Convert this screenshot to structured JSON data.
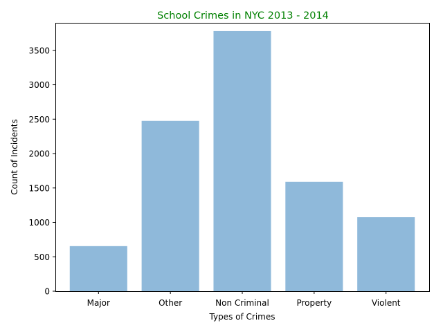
{
  "chart_data": {
    "type": "bar",
    "title": "School Crimes in NYC 2013 - 2014",
    "title_color": "#008000",
    "xlabel": "Types of Crimes",
    "ylabel": "Count of Incidents",
    "categories": [
      "Major",
      "Other",
      "Non Criminal",
      "Property",
      "Violent"
    ],
    "values": [
      655,
      2475,
      3780,
      1590,
      1075
    ],
    "bar_color": "#8fb9da",
    "ylim": [
      0,
      3900
    ],
    "yticks": [
      0,
      500,
      1000,
      1500,
      2000,
      2500,
      3000,
      3500
    ],
    "grid": false,
    "legend": "none"
  }
}
